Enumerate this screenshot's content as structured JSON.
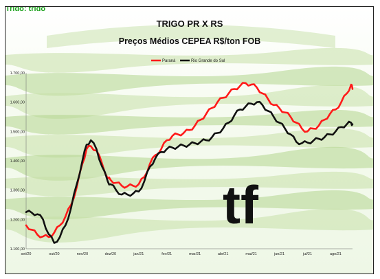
{
  "header_fragment": "Trigo: trigo",
  "colors": {
    "parana": "#ff1a1a",
    "rs": "#111111",
    "band": "#c6e0a8",
    "band_dark": "#b3d68e",
    "logo": "#6b7260"
  },
  "logo_text": "tf",
  "chart_data": {
    "type": "line",
    "title": "TRIGO PR X RS",
    "subtitle": "Preços Médios CEPEA  R$/ton FOB",
    "xlabel": "",
    "ylabel": "",
    "ylim": [
      1100,
      1700
    ],
    "y_ticks": [
      "1.100,00",
      "1.200,00",
      "1.300,00",
      "1.400,00",
      "1.500,00",
      "1.600,00",
      "1.700,00"
    ],
    "x_ticks": [
      "set/20",
      "out/20",
      "nov/20",
      "dez/20",
      "jan/21",
      "fev/21",
      "mar/21",
      "abr/21",
      "mai/21",
      "jun/21",
      "jul/21",
      "ago/21"
    ],
    "legend_position": "top-center",
    "grid": false,
    "series": [
      {
        "name": "Paraná",
        "color": "#ff1a1a",
        "values": [
          [
            0.0,
            1180
          ],
          [
            0.2,
            1165
          ],
          [
            0.4,
            1148
          ],
          [
            0.6,
            1142
          ],
          [
            0.8,
            1140
          ],
          [
            1.0,
            1155
          ],
          [
            1.2,
            1180
          ],
          [
            1.4,
            1210
          ],
          [
            1.6,
            1250
          ],
          [
            1.8,
            1310
          ],
          [
            2.0,
            1390
          ],
          [
            2.15,
            1440
          ],
          [
            2.3,
            1450
          ],
          [
            2.5,
            1435
          ],
          [
            2.7,
            1390
          ],
          [
            2.9,
            1340
          ],
          [
            3.0,
            1335
          ],
          [
            3.2,
            1325
          ],
          [
            3.4,
            1315
          ],
          [
            3.6,
            1313
          ],
          [
            3.8,
            1315
          ],
          [
            4.0,
            1320
          ],
          [
            4.2,
            1345
          ],
          [
            4.4,
            1390
          ],
          [
            4.6,
            1420
          ],
          [
            4.8,
            1440
          ],
          [
            5.0,
            1470
          ],
          [
            5.2,
            1485
          ],
          [
            5.4,
            1490
          ],
          [
            5.6,
            1495
          ],
          [
            5.8,
            1505
          ],
          [
            6.0,
            1520
          ],
          [
            6.2,
            1540
          ],
          [
            6.4,
            1560
          ],
          [
            6.6,
            1580
          ],
          [
            6.8,
            1600
          ],
          [
            7.0,
            1615
          ],
          [
            7.2,
            1630
          ],
          [
            7.4,
            1645
          ],
          [
            7.6,
            1655
          ],
          [
            7.8,
            1665
          ],
          [
            8.0,
            1660
          ],
          [
            8.2,
            1650
          ],
          [
            8.4,
            1630
          ],
          [
            8.6,
            1610
          ],
          [
            8.8,
            1590
          ],
          [
            9.0,
            1580
          ],
          [
            9.2,
            1565
          ],
          [
            9.4,
            1550
          ],
          [
            9.6,
            1530
          ],
          [
            9.8,
            1510
          ],
          [
            10.0,
            1500
          ],
          [
            10.2,
            1510
          ],
          [
            10.4,
            1520
          ],
          [
            10.6,
            1540
          ],
          [
            10.8,
            1560
          ],
          [
            11.0,
            1575
          ],
          [
            11.2,
            1600
          ],
          [
            11.4,
            1630
          ],
          [
            11.55,
            1660
          ],
          [
            11.6,
            1645
          ]
        ]
      },
      {
        "name": "Rio Grande do Sul",
        "color": "#111111",
        "values": [
          [
            0.0,
            1225
          ],
          [
            0.2,
            1223
          ],
          [
            0.4,
            1218
          ],
          [
            0.6,
            1200
          ],
          [
            0.8,
            1150
          ],
          [
            1.0,
            1120
          ],
          [
            1.2,
            1140
          ],
          [
            1.4,
            1180
          ],
          [
            1.6,
            1240
          ],
          [
            1.8,
            1320
          ],
          [
            2.0,
            1400
          ],
          [
            2.15,
            1455
          ],
          [
            2.3,
            1470
          ],
          [
            2.5,
            1440
          ],
          [
            2.7,
            1380
          ],
          [
            2.9,
            1330
          ],
          [
            3.0,
            1320
          ],
          [
            3.2,
            1300
          ],
          [
            3.4,
            1285
          ],
          [
            3.6,
            1285
          ],
          [
            3.8,
            1288
          ],
          [
            4.0,
            1295
          ],
          [
            4.2,
            1330
          ],
          [
            4.4,
            1380
          ],
          [
            4.6,
            1410
          ],
          [
            4.8,
            1430
          ],
          [
            5.0,
            1440
          ],
          [
            5.2,
            1445
          ],
          [
            5.4,
            1448
          ],
          [
            5.6,
            1452
          ],
          [
            5.8,
            1455
          ],
          [
            6.0,
            1460
          ],
          [
            6.2,
            1465
          ],
          [
            6.4,
            1470
          ],
          [
            6.6,
            1480
          ],
          [
            6.8,
            1495
          ],
          [
            7.0,
            1510
          ],
          [
            7.2,
            1530
          ],
          [
            7.4,
            1555
          ],
          [
            7.6,
            1575
          ],
          [
            7.8,
            1585
          ],
          [
            8.0,
            1595
          ],
          [
            8.2,
            1600
          ],
          [
            8.4,
            1590
          ],
          [
            8.6,
            1570
          ],
          [
            8.8,
            1550
          ],
          [
            9.0,
            1530
          ],
          [
            9.2,
            1510
          ],
          [
            9.4,
            1490
          ],
          [
            9.6,
            1465
          ],
          [
            9.8,
            1460
          ],
          [
            10.0,
            1462
          ],
          [
            10.2,
            1468
          ],
          [
            10.4,
            1475
          ],
          [
            10.6,
            1480
          ],
          [
            10.8,
            1490
          ],
          [
            11.0,
            1500
          ],
          [
            11.2,
            1515
          ],
          [
            11.4,
            1525
          ],
          [
            11.55,
            1530
          ],
          [
            11.6,
            1525
          ]
        ]
      }
    ]
  }
}
